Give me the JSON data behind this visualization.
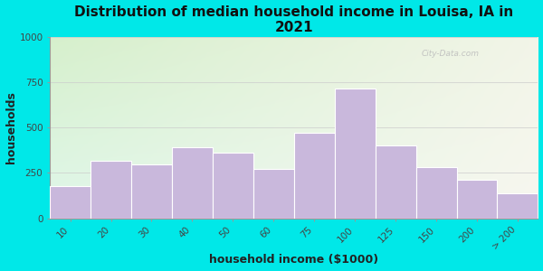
{
  "title": "Distribution of median household income in Louisa, IA in\n2021",
  "xlabel": "household income ($1000)",
  "ylabel": "households",
  "categories": [
    "10",
    "20",
    "30",
    "40",
    "50",
    "60",
    "75",
    "100",
    "125",
    "150",
    "200",
    "> 200"
  ],
  "values": [
    175,
    315,
    295,
    390,
    360,
    270,
    470,
    715,
    400,
    280,
    210,
    135
  ],
  "bar_color": "#c9b8dc",
  "bar_edge_color": "#ffffff",
  "background_outer": "#00e8e8",
  "ylim": [
    0,
    1000
  ],
  "yticks": [
    0,
    250,
    500,
    750,
    1000
  ],
  "title_fontsize": 11,
  "label_fontsize": 9,
  "tick_fontsize": 7.5,
  "watermark": "City-Data.com",
  "grad_tl": [
    0.84,
    0.94,
    0.8
  ],
  "grad_tr": [
    0.95,
    0.96,
    0.91
  ],
  "grad_bl": [
    0.88,
    0.97,
    0.92
  ],
  "grad_br": [
    0.97,
    0.97,
    0.94
  ]
}
